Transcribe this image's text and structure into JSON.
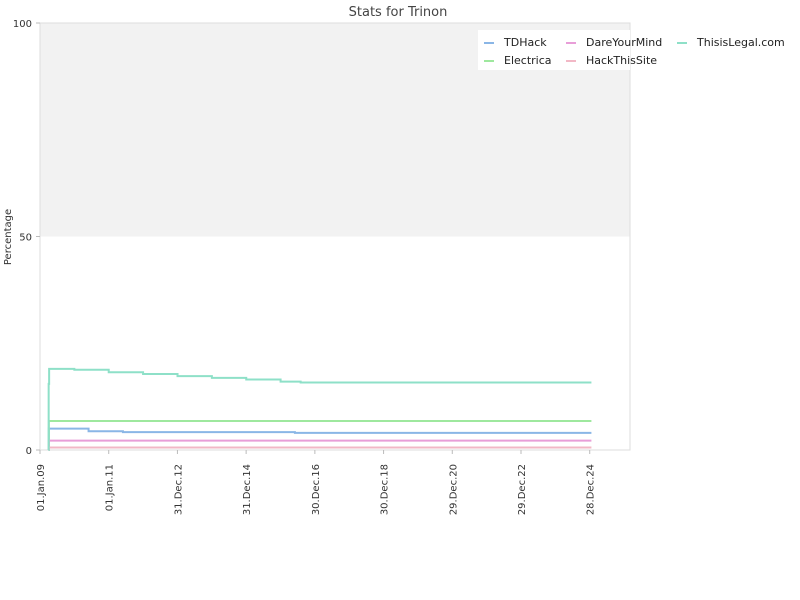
{
  "chart_data": {
    "type": "line",
    "title": "Stats for Trinon",
    "xlabel": "",
    "ylabel": "Percentage",
    "ylim": [
      0,
      100
    ],
    "xlim": [
      "2009-01-01",
      "2026-03-01"
    ],
    "y_ticks": [
      0,
      50,
      100
    ],
    "x_ticks": [
      {
        "label": "01.Jan.09",
        "date": "2009-01-01"
      },
      {
        "label": "01.Jan.11",
        "date": "2011-01-01"
      },
      {
        "label": "31.Dec.12",
        "date": "2012-12-31"
      },
      {
        "label": "31.Dec.14",
        "date": "2014-12-31"
      },
      {
        "label": "30.Dec.16",
        "date": "2016-12-30"
      },
      {
        "label": "30.Dec.18",
        "date": "2018-12-30"
      },
      {
        "label": "29.Dec.20",
        "date": "2020-12-29"
      },
      {
        "label": "29.Dec.22",
        "date": "2022-12-29"
      },
      {
        "label": "28.Dec.24",
        "date": "2024-12-28"
      }
    ],
    "shaded_band": {
      "from": 50,
      "to": 100,
      "color": "#f2f2f2"
    },
    "legend_position": "top-right",
    "grid": false,
    "series": [
      {
        "name": "TDHack",
        "color": "#8ab6e6",
        "points": [
          [
            "2009-04-01",
            0
          ],
          [
            "2009-04-05",
            5.0
          ],
          [
            "2010-06-01",
            4.4
          ],
          [
            "2011-06-01",
            4.2
          ],
          [
            "2015-06-01",
            4.2
          ],
          [
            "2016-06-01",
            4.0
          ],
          [
            "2025-01-15",
            4.0
          ]
        ]
      },
      {
        "name": "Electrica",
        "color": "#9ee89e",
        "points": [
          [
            "2009-04-01",
            0
          ],
          [
            "2009-04-05",
            6.8
          ],
          [
            "2025-01-15",
            6.8
          ]
        ]
      },
      {
        "name": "DareYourMind",
        "color": "#e89ed8",
        "points": [
          [
            "2009-04-01",
            0
          ],
          [
            "2009-04-05",
            2.2
          ],
          [
            "2025-01-15",
            2.2
          ]
        ]
      },
      {
        "name": "HackThisSite",
        "color": "#f2b8c6",
        "points": [
          [
            "2009-04-01",
            0
          ],
          [
            "2009-04-05",
            0.6
          ],
          [
            "2025-01-15",
            0.6
          ]
        ]
      },
      {
        "name": "ThisisLegal.com",
        "color": "#8ee0c8",
        "points": [
          [
            "2009-04-01",
            0
          ],
          [
            "2009-04-03",
            15.5
          ],
          [
            "2009-04-08",
            19.0
          ],
          [
            "2010-01-01",
            18.8
          ],
          [
            "2011-01-01",
            18.2
          ],
          [
            "2012-01-01",
            17.8
          ],
          [
            "2013-01-01",
            17.3
          ],
          [
            "2014-01-01",
            16.9
          ],
          [
            "2015-01-01",
            16.5
          ],
          [
            "2016-01-01",
            16.0
          ],
          [
            "2016-08-01",
            15.8
          ],
          [
            "2025-01-15",
            15.8
          ]
        ]
      }
    ]
  }
}
